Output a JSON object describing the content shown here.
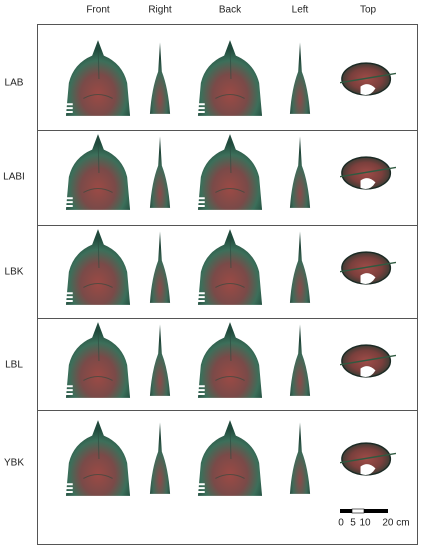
{
  "columns": [
    "Front",
    "Right",
    "Back",
    "Left",
    "Top"
  ],
  "rows": [
    "LAB",
    "LABI",
    "LBK",
    "LBL",
    "YBK"
  ],
  "scale_bar": {
    "labels": [
      "0",
      "5",
      "10",
      "20 cm"
    ]
  }
}
